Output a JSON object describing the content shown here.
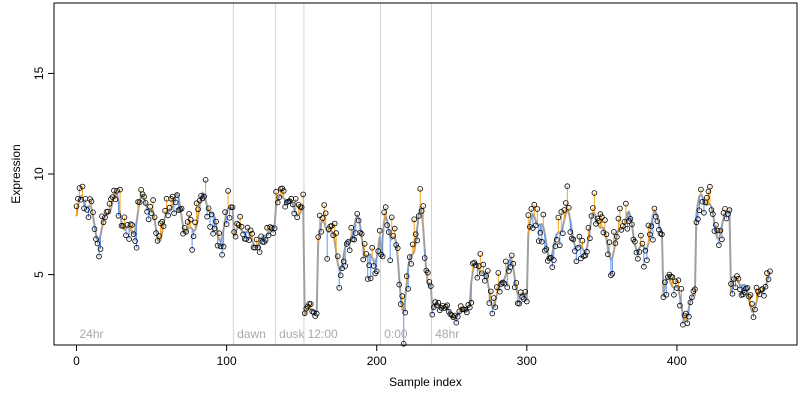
{
  "chart_data": {
    "type": "line",
    "title": "",
    "xlabel": "Sample index",
    "ylabel": "Expression",
    "xlim": [
      -15,
      480
    ],
    "ylim": [
      1.5,
      18.5
    ],
    "x_ticks": [
      0,
      100,
      200,
      300,
      400
    ],
    "y_ticks": [
      5,
      10,
      15
    ],
    "grid": false,
    "legend": "none",
    "colors": {
      "fitted_line": "#a0a0a0",
      "residual_up": "#f5a623",
      "residual_down": "#6495ed",
      "point_stroke": "#000000",
      "condition_line": "#d3d3d3",
      "condition_text": "#a9a9a9"
    },
    "conditions": [
      {
        "label": "24hr",
        "x": 0
      },
      {
        "label": "dawn",
        "x": 105
      },
      {
        "label": "dusk",
        "x": 133
      },
      {
        "label": "12:00",
        "x": 152
      },
      {
        "label": "0:00",
        "x": 203
      },
      {
        "label": "48hr",
        "x": 237
      }
    ],
    "segments": [
      {
        "x_start": 0,
        "x_end": 104,
        "base": 7.9,
        "amp": 0.9,
        "noise": 0.9
      },
      {
        "x_start": 105,
        "x_end": 132,
        "base": 6.9,
        "amp": 0.4,
        "noise": 0.5
      },
      {
        "x_start": 133,
        "x_end": 151,
        "base": 8.5,
        "amp": 0.4,
        "noise": 0.6
      },
      {
        "x_start": 152,
        "x_end": 160,
        "base": 3.0,
        "amp": 0.3,
        "noise": 0.4
      },
      {
        "x_start": 161,
        "x_end": 202,
        "base": 6.6,
        "amp": 1.0,
        "noise": 1.0
      },
      {
        "x_start": 203,
        "x_end": 236,
        "base": 5.8,
        "amp": 1.9,
        "noise": 1.2
      },
      {
        "x_start": 237,
        "x_end": 262,
        "base": 3.2,
        "amp": 0.3,
        "noise": 0.3
      },
      {
        "x_start": 263,
        "x_end": 300,
        "base": 4.6,
        "amp": 0.9,
        "noise": 0.8
      },
      {
        "x_start": 301,
        "x_end": 390,
        "base": 7.0,
        "amp": 0.9,
        "noise": 0.9
      },
      {
        "x_start": 391,
        "x_end": 412,
        "base": 3.9,
        "amp": 0.9,
        "noise": 0.6
      },
      {
        "x_start": 413,
        "x_end": 435,
        "base": 8.0,
        "amp": 0.9,
        "noise": 0.9
      },
      {
        "x_start": 436,
        "x_end": 462,
        "base": 4.1,
        "amp": 0.7,
        "noise": 0.6
      }
    ]
  }
}
